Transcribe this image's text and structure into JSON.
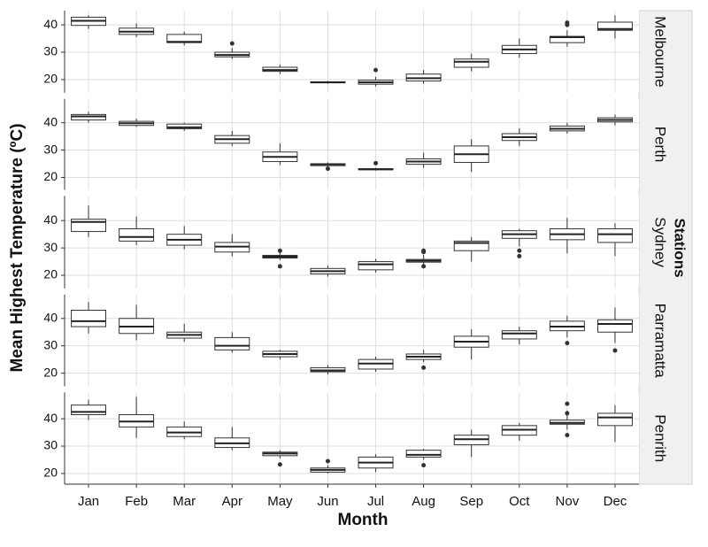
{
  "chart_data": {
    "type": "boxplot",
    "y_label": "Mean Highest Temperature (ºC)",
    "x_label": "Month",
    "legend_title": "Stations",
    "categories": [
      "Jan",
      "Feb",
      "Mar",
      "Apr",
      "May",
      "Jun",
      "Jul",
      "Aug",
      "Sep",
      "Oct",
      "Nov",
      "Dec"
    ],
    "yticks": [
      20,
      30,
      40
    ],
    "grid": true,
    "series": [
      {
        "name": "Melbourne",
        "ylim": [
          15.2,
          45.2
        ],
        "values": [
          [
            38.5,
            39.8,
            41.5,
            42.8,
            43.5
          ],
          [
            35.5,
            36.5,
            37.5,
            38.8,
            40.5
          ],
          [
            32.5,
            33.5,
            33.8,
            36.5,
            37.5
          ],
          [
            27.5,
            28.3,
            29,
            30,
            31.5
          ],
          [
            22,
            23,
            23.5,
            24.5,
            25.5
          ],
          [
            18.5,
            18.8,
            19,
            19.2,
            19.5
          ],
          [
            17.5,
            18.3,
            19,
            19.8,
            21
          ],
          [
            18.5,
            19.5,
            20.5,
            22,
            23.5
          ],
          [
            23,
            24.5,
            26.5,
            27.5,
            29.5
          ],
          [
            28,
            29.5,
            31,
            32.5,
            35
          ],
          [
            32,
            33.5,
            35.5,
            35.8,
            38
          ],
          [
            35,
            38,
            38.5,
            41,
            43.5
          ]
        ],
        "outliers": [
          [],
          [],
          [],
          [
            33.2
          ],
          [],
          [],
          [
            23.5
          ],
          [],
          [],
          [],
          [
            40,
            40.8
          ],
          []
        ]
      },
      {
        "name": "Perth",
        "ylim": [
          15.5,
          48.7
        ],
        "values": [
          [
            40,
            41,
            42.3,
            43,
            44
          ],
          [
            38.5,
            39,
            39.8,
            40.5,
            41.5
          ],
          [
            37,
            37.8,
            38.3,
            39.5,
            40
          ],
          [
            31.5,
            32.5,
            34,
            35.3,
            37
          ],
          [
            24.5,
            25.8,
            27.5,
            29.3,
            32.5
          ],
          [
            23.8,
            24.3,
            24.8,
            25,
            25.5
          ],
          [
            22.5,
            22.8,
            23,
            23.2,
            23.5
          ],
          [
            23.5,
            24.8,
            25.8,
            26.8,
            29
          ],
          [
            22,
            25.5,
            28.5,
            31.5,
            34
          ],
          [
            31.5,
            33.5,
            34.7,
            36,
            38
          ],
          [
            36,
            37,
            37.8,
            38.8,
            40
          ],
          [
            39,
            40.3,
            41,
            41.8,
            43
          ]
        ],
        "outliers": [
          [],
          [],
          [],
          [],
          [],
          [
            23.2
          ],
          [
            25.2
          ],
          [],
          [],
          [],
          [],
          []
        ]
      },
      {
        "name": "Sydney",
        "ylim": [
          15.2,
          49
        ],
        "values": [
          [
            34,
            36,
            39.5,
            40.5,
            45.5
          ],
          [
            31,
            32.5,
            34,
            37,
            41.5
          ],
          [
            29.5,
            31,
            33,
            35,
            38
          ],
          [
            27,
            28.5,
            30.5,
            32,
            35
          ],
          [
            25.5,
            26.3,
            26.8,
            27.3,
            28.5
          ],
          [
            19.5,
            20.5,
            21.5,
            22.5,
            23.5
          ],
          [
            21,
            22,
            24,
            25,
            26
          ],
          [
            24,
            24.8,
            25.3,
            25.8,
            27.5
          ],
          [
            25,
            29,
            31.8,
            32.5,
            34
          ],
          [
            30.5,
            33.5,
            35,
            36.3,
            37
          ],
          [
            28,
            33,
            35,
            37,
            41
          ],
          [
            27,
            32,
            35,
            37,
            39
          ]
        ],
        "outliers": [
          [],
          [],
          [],
          [],
          [
            29,
            23.3
          ],
          [],
          [],
          [
            29,
            28.5,
            23.3
          ],
          [],
          [
            29,
            27
          ],
          [],
          []
        ]
      },
      {
        "name": "Parramatta",
        "ylim": [
          15.2,
          48.7
        ],
        "values": [
          [
            34.5,
            37,
            39,
            43,
            46
          ],
          [
            32,
            34.5,
            37,
            40,
            45
          ],
          [
            31.5,
            32.8,
            34,
            35,
            38
          ],
          [
            27.5,
            28.5,
            30,
            33,
            35
          ],
          [
            25,
            26,
            27,
            28,
            28.5
          ],
          [
            19.5,
            20.5,
            21,
            22,
            23
          ],
          [
            20.5,
            21.5,
            23.5,
            25,
            26
          ],
          [
            24,
            25,
            26,
            27,
            28.5
          ],
          [
            25,
            29.5,
            31.5,
            33.5,
            36
          ],
          [
            30.5,
            32.5,
            34.5,
            35.5,
            37
          ],
          [
            33,
            35.5,
            37,
            39,
            41
          ],
          [
            31,
            35,
            38,
            39.5,
            44
          ]
        ],
        "outliers": [
          [],
          [],
          [],
          [],
          [],
          [],
          [],
          [
            22
          ],
          [],
          [],
          [
            31
          ],
          [
            28.3
          ]
        ]
      },
      {
        "name": "Penrith",
        "ylim": [
          16.1,
          49.6
        ],
        "values": [
          [
            39.5,
            41.5,
            42.5,
            45,
            47
          ],
          [
            33,
            37,
            39,
            41.5,
            48
          ],
          [
            32.5,
            33.5,
            35,
            37,
            39
          ],
          [
            28.5,
            29.5,
            31,
            33,
            37
          ],
          [
            25.5,
            26.5,
            27.3,
            27.8,
            28.5
          ],
          [
            20,
            20.5,
            21.3,
            22,
            23
          ],
          [
            20.5,
            22,
            24,
            26,
            27
          ],
          [
            25,
            26,
            26.8,
            28.5,
            29
          ],
          [
            26,
            30.5,
            32.5,
            34,
            36
          ],
          [
            32,
            34,
            36,
            37.5,
            38.5
          ],
          [
            36,
            38,
            38.5,
            39.5,
            43
          ],
          [
            31.5,
            37.5,
            40.5,
            42,
            45
          ]
        ],
        "outliers": [
          [],
          [],
          [],
          [],
          [
            23.3
          ],
          [
            24.5
          ],
          [],
          [
            23
          ],
          [],
          [],
          [
            34,
            42,
            45.5
          ],
          []
        ]
      }
    ]
  }
}
